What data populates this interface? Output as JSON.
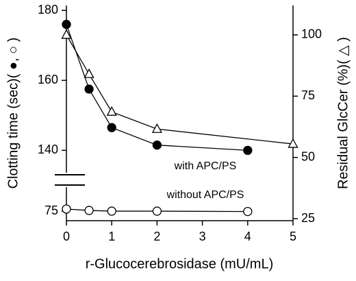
{
  "chart_data": {
    "type": "line",
    "x_label": "r-Glucocerebrosidase (mU/mL)",
    "y_label": "Clotting time (sec)( ●, ○ )",
    "y2_label": "Residual GlcCer (%)( △ )",
    "xlim": [
      0,
      5
    ],
    "xticks": [
      0,
      1,
      2,
      3,
      4,
      5
    ],
    "ylim": [
      134,
      181.4
    ],
    "yticks": [
      140,
      160,
      180
    ],
    "ylim_lower": [
      72.3,
      82
    ],
    "yticks_lower": [
      75
    ],
    "y2lim": [
      24.2,
      112
    ],
    "y2ticks": [
      25,
      50,
      75,
      100
    ],
    "annotations": [
      "with APC/PS",
      "without APC/PS"
    ],
    "series": [
      {
        "x": [
          0,
          0.5,
          1,
          2,
          4
        ],
        "values": [
          176,
          157.5,
          146.5,
          141.5,
          140
        ],
        "marker": "filled-circle",
        "color": "#000000"
      },
      {
        "x": [
          0,
          0.5,
          1,
          2,
          4
        ],
        "values": [
          75.6,
          75.2,
          75,
          75,
          74.9
        ],
        "marker": "open-circle",
        "color": "#000000",
        "axis": "y_lower"
      },
      {
        "x": [
          0,
          0.5,
          1,
          2,
          5
        ],
        "values": [
          100,
          84,
          68.6,
          61.6,
          55.5
        ],
        "marker": "open-triangle",
        "color": "#000000",
        "axis": "y2"
      }
    ]
  }
}
